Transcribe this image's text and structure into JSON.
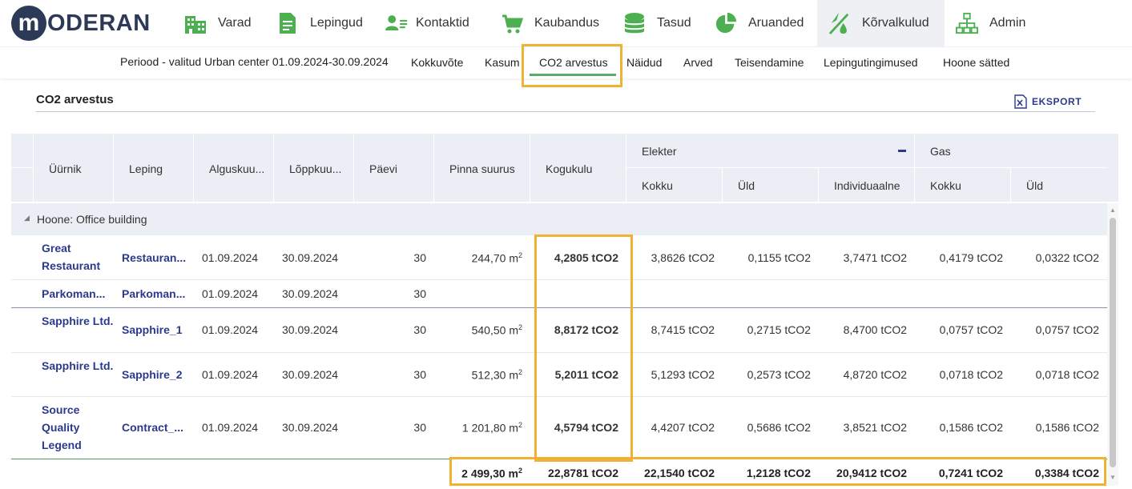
{
  "brand": {
    "logo_letter": "m",
    "logo_text": "ODERAN"
  },
  "nav": {
    "items": [
      {
        "label": "Varad",
        "icon": "buildings-icon"
      },
      {
        "label": "Lepingud",
        "icon": "document-icon"
      },
      {
        "label": "Kontaktid",
        "icon": "contacts-icon"
      },
      {
        "label": "Kaubandus",
        "icon": "cart-icon"
      },
      {
        "label": "Tasud",
        "icon": "coins-icon"
      },
      {
        "label": "Aruanded",
        "icon": "pie-chart-icon"
      },
      {
        "label": "Kõrvalkulud",
        "icon": "utilities-icon",
        "active": true
      },
      {
        "label": "Admin",
        "icon": "org-chart-icon"
      }
    ],
    "accent_color": "#4caf50"
  },
  "subnav": {
    "period": "Periood - valitud Urban center 01.09.2024-30.09.2024",
    "tabs": [
      "Kokkuvõte",
      "Kasum",
      "CO2 arvestus",
      "Näidud",
      "Arved",
      "Teisendamine",
      "Lepingutingimused",
      "Hoone sätted"
    ],
    "active_tab": "CO2 arvestus"
  },
  "section": {
    "title": "CO2 arvestus",
    "export_label": "EKSPORT"
  },
  "table": {
    "headers": {
      "tenant": "Üürnik",
      "contract": "Leping",
      "start": "Alguskuu...",
      "end": "Lõppkuu...",
      "days": "Päevi",
      "area": "Pinna suurus",
      "total": "Kogukulu",
      "electricity": "Elekter",
      "gas": "Gas",
      "el_total": "Kokku",
      "el_common": "Üld",
      "el_individual": "Individuaalne",
      "gas_total": "Kokku",
      "gas_common": "Üld"
    },
    "group_label": "Hoone: Office building",
    "rows": [
      {
        "tenant": "Great Restaurant",
        "contract": "Restauran...",
        "start": "01.09.2024",
        "end": "30.09.2024",
        "days": "30",
        "area": "244,70 m",
        "total": "4,2805 tCO2",
        "el_total": "3,8626 tCO2",
        "el_common": "0,1155 tCO2",
        "el_individual": "3,7471 tCO2",
        "gas_total": "0,4179 tCO2",
        "gas_common": "0,0322 tCO2"
      },
      {
        "tenant": "Parkoman...",
        "contract": "Parkoman...",
        "start": "01.09.2024",
        "end": "30.09.2024",
        "days": "30",
        "area": "",
        "total": "",
        "el_total": "",
        "el_common": "",
        "el_individual": "",
        "gas_total": "",
        "gas_common": ""
      },
      {
        "tenant": "Sapphire Ltd.",
        "contract": "Sapphire_1",
        "start": "01.09.2024",
        "end": "30.09.2024",
        "days": "30",
        "area": "540,50 m",
        "total": "8,8172 tCO2",
        "el_total": "8,7415 tCO2",
        "el_common": "0,2715 tCO2",
        "el_individual": "8,4700 tCO2",
        "gas_total": "0,0757 tCO2",
        "gas_common": "0,0757 tCO2"
      },
      {
        "tenant": "Sapphire Ltd.",
        "contract": "Sapphire_2",
        "start": "01.09.2024",
        "end": "30.09.2024",
        "days": "30",
        "area": "512,30 m",
        "total": "5,2011 tCO2",
        "el_total": "5,1293 tCO2",
        "el_common": "0,2573 tCO2",
        "el_individual": "4,8720 tCO2",
        "gas_total": "0,0718 tCO2",
        "gas_common": "0,0718 tCO2"
      },
      {
        "tenant": "Source Quality Legend",
        "contract": "Contract_...",
        "start": "01.09.2024",
        "end": "30.09.2024",
        "days": "30",
        "area": "1 201,80 m",
        "total": "4,5794 tCO2",
        "el_total": "4,4207 tCO2",
        "el_common": "0,5686 tCO2",
        "el_individual": "3,8521 tCO2",
        "gas_total": "0,1586 tCO2",
        "gas_common": "0,1586 tCO2"
      }
    ],
    "area_unit_sup": "2",
    "totals": {
      "area": "2 499,30 m",
      "total": "22,8781 tCO2",
      "el_total": "22,1540 tCO2",
      "el_common": "1,2128 tCO2",
      "el_individual": "20,9412 tCO2",
      "gas_total": "0,7241 tCO2",
      "gas_common": "0,3384 tCO2"
    }
  },
  "highlight_color": "#f0b232"
}
